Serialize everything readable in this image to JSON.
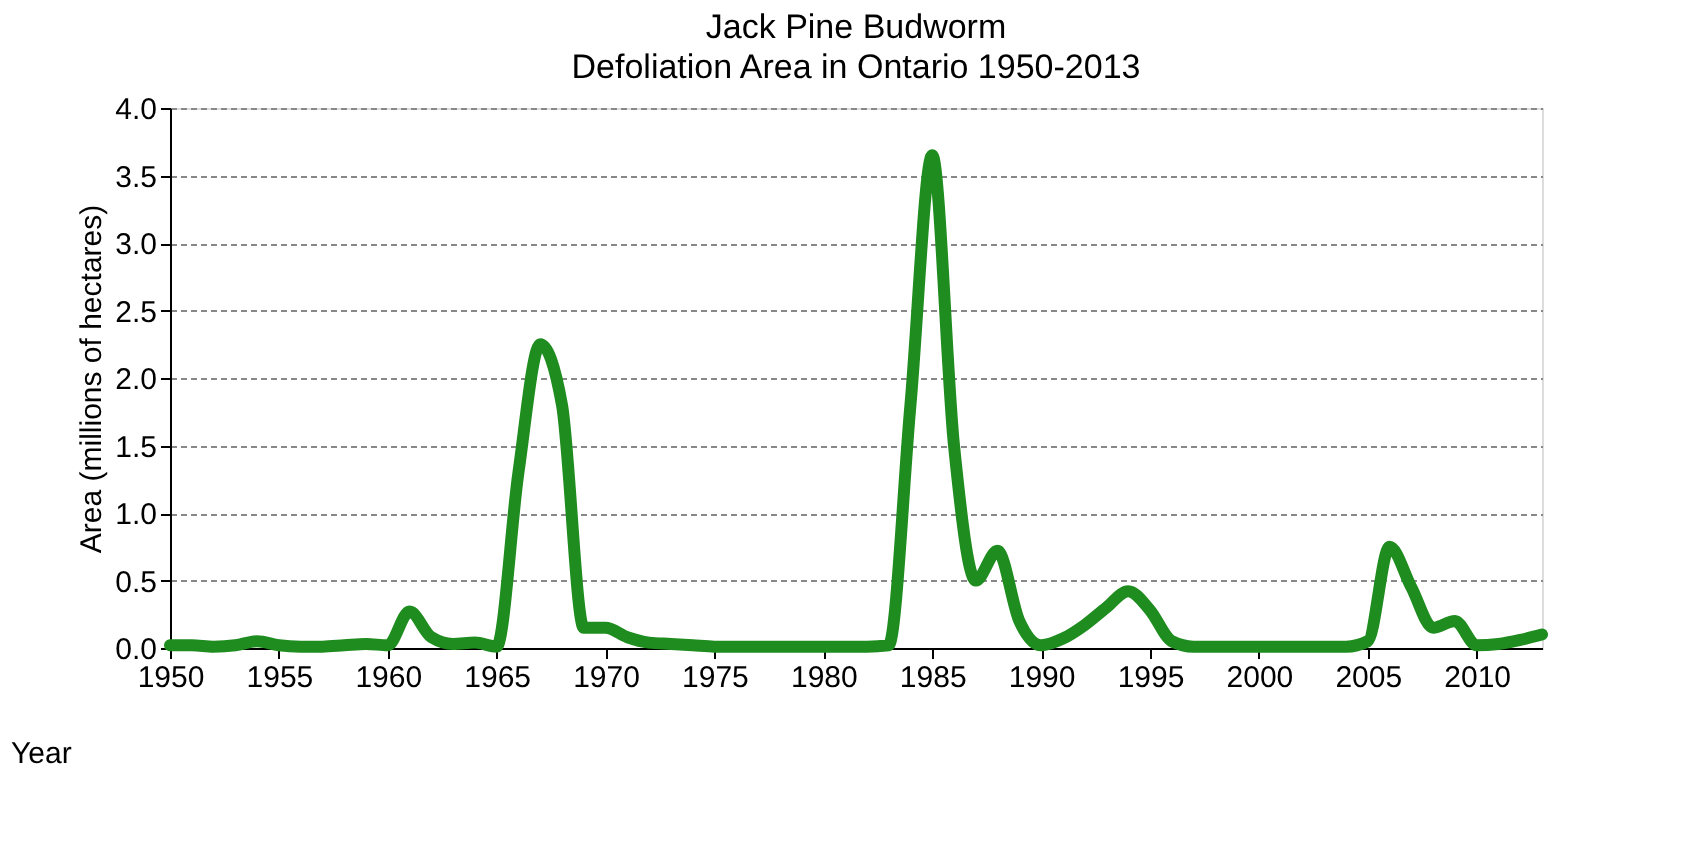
{
  "chart_data": {
    "type": "line",
    "title": "Jack Pine Budworm",
    "subtitle": "Defoliation Area in Ontario 1950-2013",
    "xlabel": "Year",
    "ylabel": "Area (millions of hectares)",
    "x": [
      1950,
      1951,
      1952,
      1953,
      1954,
      1955,
      1956,
      1957,
      1958,
      1959,
      1960,
      1961,
      1962,
      1963,
      1964,
      1965,
      1966,
      1967,
      1968,
      1969,
      1970,
      1971,
      1972,
      1973,
      1974,
      1975,
      1976,
      1977,
      1978,
      1979,
      1980,
      1981,
      1982,
      1983,
      1984,
      1985,
      1986,
      1987,
      1988,
      1989,
      1990,
      1991,
      1992,
      1993,
      1994,
      1995,
      1996,
      1997,
      1998,
      1999,
      2000,
      2001,
      2002,
      2003,
      2004,
      2005,
      2006,
      2007,
      2008,
      2009,
      2010,
      2011,
      2012,
      2013
    ],
    "series": [
      {
        "color": "#1e8c1e",
        "values": [
          0.02,
          0.02,
          0.01,
          0.02,
          0.05,
          0.02,
          0.01,
          0.01,
          0.02,
          0.03,
          0.02,
          0.27,
          0.08,
          0.03,
          0.04,
          0.01,
          1.3,
          2.25,
          1.8,
          0.15,
          0.15,
          0.08,
          0.04,
          0.03,
          0.02,
          0.01,
          0.01,
          0.01,
          0.01,
          0.01,
          0.01,
          0.01,
          0.01,
          0.02,
          1.8,
          3.65,
          1.5,
          0.5,
          0.72,
          0.2,
          0.02,
          0.07,
          0.17,
          0.3,
          0.42,
          0.28,
          0.05,
          0.01,
          0.01,
          0.01,
          0.01,
          0.01,
          0.01,
          0.01,
          0.01,
          0.05,
          0.75,
          0.45,
          0.15,
          0.2,
          0.02,
          0.03,
          0.06,
          0.1
        ]
      }
    ],
    "xlim": [
      1950,
      2013
    ],
    "xticks": [
      1950,
      1955,
      1960,
      1965,
      1970,
      1975,
      1980,
      1985,
      1990,
      1995,
      2000,
      2005,
      2010
    ],
    "ylim": [
      0,
      4
    ],
    "yticks": [
      {
        "value": 0,
        "label": "0.0"
      },
      0.5,
      {
        "value": 1,
        "label": "1.0"
      },
      1.5,
      {
        "value": 2,
        "label": "2.0"
      },
      2.5,
      {
        "value": 3,
        "label": "3.0"
      },
      3.5,
      {
        "value": 4,
        "label": "4.0"
      }
    ],
    "grid": "y",
    "legend": false
  }
}
